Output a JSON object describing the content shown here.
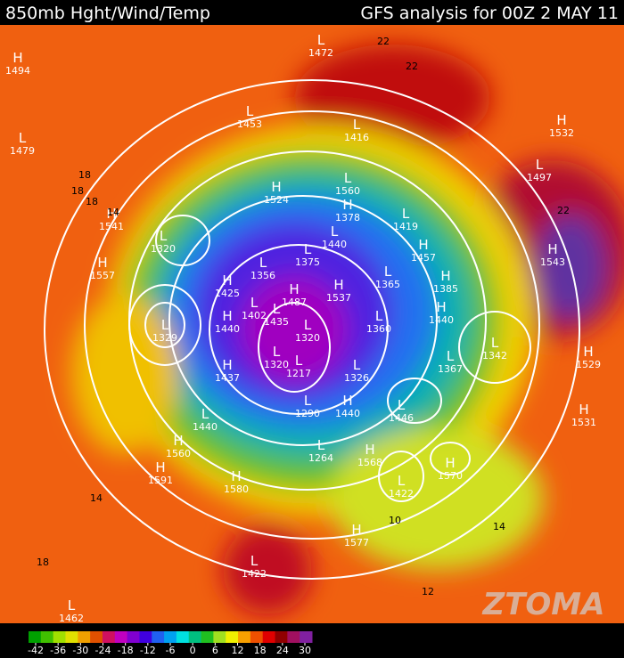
{
  "header": {
    "left": "850mb Hght/Wind/Temp",
    "right": "GFS analysis for 00Z  2 MAY 11"
  },
  "centers": [
    {
      "kind": "H",
      "value": 1494
    },
    {
      "kind": "L",
      "value": 1479
    },
    {
      "kind": "L",
      "value": 1472
    },
    {
      "kind": "L",
      "value": 1453
    },
    {
      "kind": "L",
      "value": 1416
    },
    {
      "kind": "H",
      "value": 1532
    },
    {
      "kind": "L",
      "value": 1497
    },
    {
      "kind": "H",
      "value": 1541
    },
    {
      "kind": "L",
      "value": 1320
    },
    {
      "kind": "H",
      "value": 1557
    },
    {
      "kind": "H",
      "value": 1524
    },
    {
      "kind": "L",
      "value": 1560
    },
    {
      "kind": "H",
      "value": 1378
    },
    {
      "kind": "L",
      "value": 1419
    },
    {
      "kind": "L",
      "value": 1440
    },
    {
      "kind": "L",
      "value": 1375
    },
    {
      "kind": "H",
      "value": 1457
    },
    {
      "kind": "H",
      "value": 1543
    },
    {
      "kind": "H",
      "value": 1425
    },
    {
      "kind": "L",
      "value": 1356
    },
    {
      "kind": "H",
      "value": 1487
    },
    {
      "kind": "H",
      "value": 1537
    },
    {
      "kind": "L",
      "value": 1365
    },
    {
      "kind": "H",
      "value": 1385
    },
    {
      "kind": "L",
      "value": 1402
    },
    {
      "kind": "L",
      "value": 1435
    },
    {
      "kind": "L",
      "value": 1329
    },
    {
      "kind": "H",
      "value": 1440
    },
    {
      "kind": "L",
      "value": 1360
    },
    {
      "kind": "H",
      "value": 1440
    },
    {
      "kind": "L",
      "value": 1320
    },
    {
      "kind": "L",
      "value": 1342
    },
    {
      "kind": "H",
      "value": 1529
    },
    {
      "kind": "H",
      "value": 1437
    },
    {
      "kind": "L",
      "value": 1320
    },
    {
      "kind": "L",
      "value": 1217
    },
    {
      "kind": "L",
      "value": 1326
    },
    {
      "kind": "L",
      "value": 1367
    },
    {
      "kind": "H",
      "value": 1531
    },
    {
      "kind": "L",
      "value": 1290
    },
    {
      "kind": "H",
      "value": 1440
    },
    {
      "kind": "L",
      "value": 1446
    },
    {
      "kind": "L",
      "value": 1440
    },
    {
      "kind": "H",
      "value": 1560
    },
    {
      "kind": "L",
      "value": 1264
    },
    {
      "kind": "H",
      "value": 1568
    },
    {
      "kind": "H",
      "value": 1570
    },
    {
      "kind": "H",
      "value": 1591
    },
    {
      "kind": "H",
      "value": 1580
    },
    {
      "kind": "L",
      "value": 1422
    },
    {
      "kind": "H",
      "value": 1577
    },
    {
      "kind": "L",
      "value": 1422
    },
    {
      "kind": "L",
      "value": 1462
    }
  ],
  "temperature_labels": [
    18,
    18,
    18,
    22,
    22,
    22,
    14,
    14,
    18,
    10,
    14,
    12
  ],
  "colorbar": {
    "ticks": [
      -42,
      -36,
      -30,
      -24,
      -18,
      -12,
      -6,
      0,
      6,
      12,
      18,
      24,
      30
    ],
    "colors": [
      "#00a000",
      "#40c000",
      "#a0e000",
      "#e0e000",
      "#f0a000",
      "#e05000",
      "#d01060",
      "#c000c0",
      "#8000d0",
      "#4000e0",
      "#2060f0",
      "#00a0f0",
      "#00e0e0",
      "#00c080",
      "#20c020",
      "#a0e020",
      "#f0f000",
      "#f8a000",
      "#f05000",
      "#e00000",
      "#900000",
      "#a01060",
      "#8020a0"
    ]
  },
  "watermark": "ZTOMA"
}
